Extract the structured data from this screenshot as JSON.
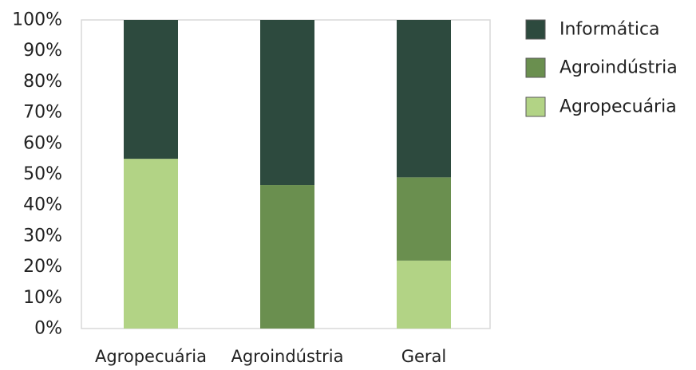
{
  "chart_data": {
    "type": "bar",
    "stacked": true,
    "percent": true,
    "categories": [
      "Agropecuária",
      "Agroindústria",
      "Geral"
    ],
    "series": [
      {
        "name": "Agropecuária",
        "color": "#b2d385",
        "values": [
          55,
          0,
          22
        ]
      },
      {
        "name": "Agroindústria",
        "color": "#6a8f4f",
        "values": [
          0,
          46.5,
          27
        ]
      },
      {
        "name": "Informática",
        "color": "#2d4a3e",
        "values": [
          45,
          53.5,
          51
        ]
      }
    ],
    "ylim": [
      0,
      100
    ],
    "yticks": [
      "0%",
      "10%",
      "20%",
      "30%",
      "40%",
      "50%",
      "60%",
      "70%",
      "80%",
      "90%",
      "100%"
    ],
    "legend_position": "right",
    "legend_order": [
      "Informática",
      "Agroindústria",
      "Agropecuária"
    ],
    "grid": false,
    "plot_border_color": "#d9d9d9",
    "title": "",
    "xlabel": "",
    "ylabel": ""
  }
}
